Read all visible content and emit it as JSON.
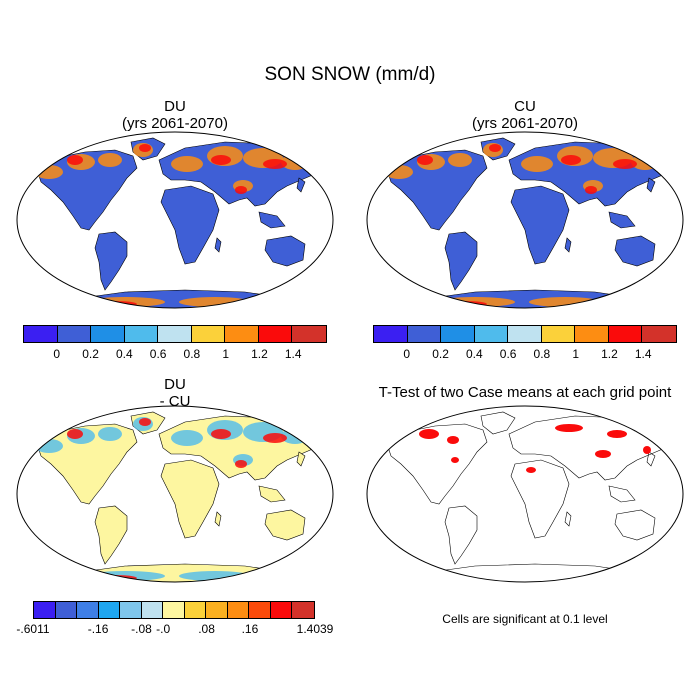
{
  "title": "SON SNOW (mm/d)",
  "panels": {
    "du": {
      "title": "DU",
      "subtitle": "(yrs 2061-2070)"
    },
    "cu": {
      "title": "CU",
      "subtitle": "(yrs 2061-2070)"
    },
    "diff": {
      "title": "DU",
      "subtitle": "- CU"
    },
    "ttest": {
      "title": "T-Test of two Case means at each grid point",
      "note": "Cells are significant at 0.1 level"
    }
  },
  "colorbar_main": {
    "colors": [
      "#3b1ff2",
      "#3f5fd6",
      "#1f8fe6",
      "#4fbbec",
      "#bfe2f0",
      "#fbd13a",
      "#fd8d12",
      "#fa0b0b",
      "#d3322a"
    ],
    "labels": [
      "0",
      "0.2",
      "0.4",
      "0.6",
      "0.8",
      "1",
      "1.2",
      "1.4"
    ]
  },
  "colorbar_diff": {
    "colors": [
      "#3b1ff2",
      "#3f5fd6",
      "#3f7fe6",
      "#1fa6f0",
      "#7fc6ec",
      "#bfe2f0",
      "#fdf6a0",
      "#fbd13a",
      "#fbb020",
      "#fd8d12",
      "#fb4b0b",
      "#fa0b0b",
      "#d3322a"
    ],
    "labels": [
      "-.6011",
      "-.16",
      "-.08",
      "-.0",
      ".08",
      ".16",
      "1.4039"
    ]
  },
  "map_colors": {
    "ocean": "#ffffff",
    "land_low": "#3f5fd6",
    "diff_land": "#fdf6a0",
    "snow_warm": "#fd8d12",
    "snow_red": "#fa0b0b",
    "significant": "#fa0b0b"
  }
}
